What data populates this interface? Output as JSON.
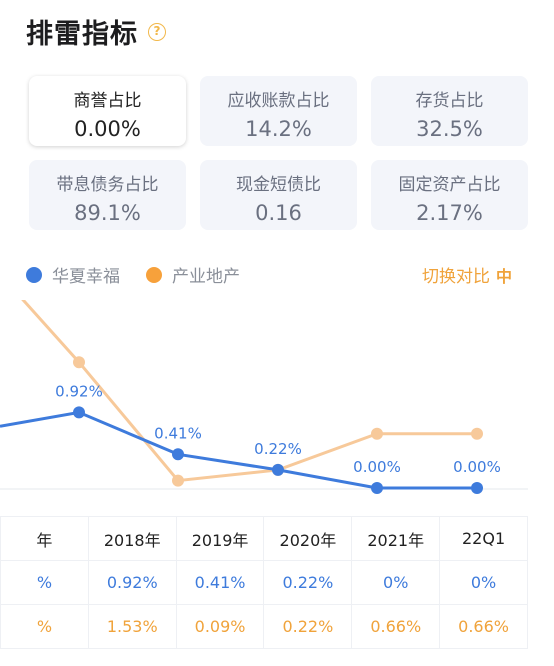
{
  "title": "排雷指标",
  "help_icon": "?",
  "cards": [
    {
      "label": "商誉占比",
      "value": "0.00%"
    },
    {
      "label": "应收账款占比",
      "value": "14.2%"
    },
    {
      "label": "存货占比",
      "value": "32.5%"
    },
    {
      "label": "带息债务占比",
      "value": "89.1%"
    },
    {
      "label": "现金短债比",
      "value": "0.16"
    },
    {
      "label": "固定资产占比",
      "value": "2.17%"
    }
  ],
  "legend": {
    "company": "华夏幸福",
    "industry": "产业地产",
    "company_color": "#3e7bdc",
    "industry_color": "#f7a13b"
  },
  "switch": {
    "label": "切换对比",
    "icon": "中"
  },
  "table": {
    "head": [
      "年",
      "2018年",
      "2019年",
      "2020年",
      "2021年",
      "22Q1"
    ],
    "company": [
      "%",
      "0.92%",
      "0.41%",
      "0.22%",
      "0%",
      "0%"
    ],
    "industry": [
      "%",
      "1.53%",
      "0.09%",
      "0.22%",
      "0.66%",
      "0.66%"
    ]
  },
  "chart_data": {
    "type": "line",
    "categories": [
      "2018年",
      "2019年",
      "2020年",
      "2021年",
      "22Q1"
    ],
    "series": [
      {
        "name": "华夏幸福",
        "values": [
          0.92,
          0.41,
          0.22,
          0.0,
          0.0
        ],
        "labels": [
          "0.92%",
          "0.41%",
          "0.22%",
          "0.00%",
          "0.00%"
        ],
        "color": "#3e7bdc"
      },
      {
        "name": "产业地产",
        "values": [
          1.53,
          0.09,
          0.22,
          0.66,
          0.66
        ],
        "color": "#f7c99a"
      }
    ],
    "grid": false
  }
}
